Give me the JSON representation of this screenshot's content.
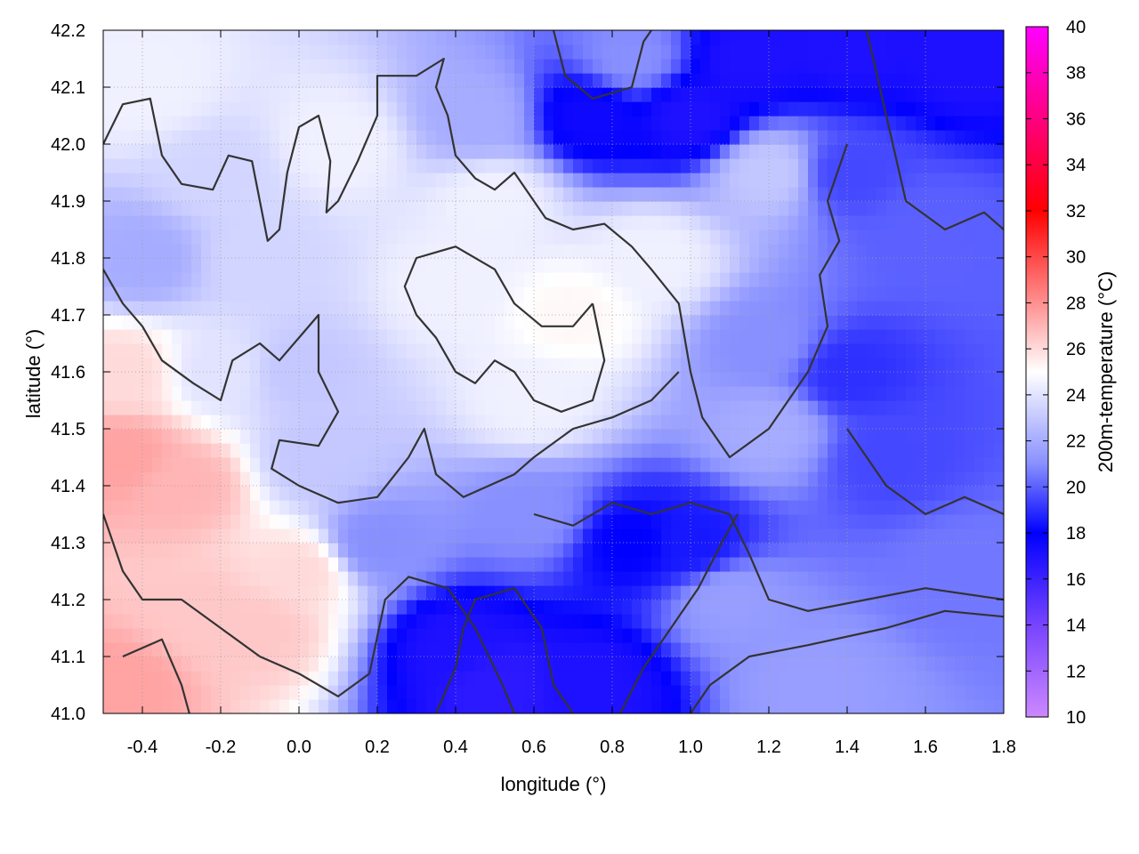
{
  "chart_data": {
    "type": "heatmap",
    "title": "",
    "xlabel": "longitude (°)",
    "ylabel": "latitude (°)",
    "colorbar_label": "200m-temperature (°C)",
    "xlim": [
      -0.5,
      1.8
    ],
    "ylim": [
      41.0,
      42.2
    ],
    "x_ticks": [
      "-0.4",
      "-0.2",
      "0.0",
      "0.2",
      "0.4",
      "0.6",
      "0.8",
      "1.0",
      "1.2",
      "1.4",
      "1.6",
      "1.8"
    ],
    "x_tick_values": [
      -0.4,
      -0.2,
      0.0,
      0.2,
      0.4,
      0.6,
      0.8,
      1.0,
      1.2,
      1.4,
      1.6,
      1.8
    ],
    "y_ticks": [
      "41.0",
      "41.1",
      "41.2",
      "41.3",
      "41.4",
      "41.5",
      "41.6",
      "41.7",
      "41.8",
      "41.9",
      "42.0",
      "42.1",
      "42.2"
    ],
    "y_tick_values": [
      41.0,
      41.1,
      41.2,
      41.3,
      41.4,
      41.5,
      41.6,
      41.7,
      41.8,
      41.9,
      42.0,
      42.1,
      42.2
    ],
    "colorbar_range": [
      10,
      40
    ],
    "colorbar_ticks": [
      "10",
      "12",
      "14",
      "16",
      "18",
      "20",
      "22",
      "24",
      "26",
      "28",
      "30",
      "32",
      "34",
      "36",
      "38",
      "40"
    ],
    "colorbar_tick_values": [
      10,
      12,
      14,
      16,
      18,
      20,
      22,
      24,
      26,
      28,
      30,
      32,
      34,
      36,
      38,
      40
    ],
    "colormap": [
      {
        "value": 10,
        "color": "#cc88ff"
      },
      {
        "value": 14,
        "color": "#7744ff"
      },
      {
        "value": 18,
        "color": "#0000ff"
      },
      {
        "value": 21,
        "color": "#8890ff"
      },
      {
        "value": 25,
        "color": "#ffffff"
      },
      {
        "value": 28,
        "color": "#ff9090"
      },
      {
        "value": 32,
        "color": "#ff0000"
      },
      {
        "value": 40,
        "color": "#ff00ff"
      }
    ],
    "field_points": [
      {
        "x": -0.45,
        "y": 41.05,
        "t": 27.5
      },
      {
        "x": -0.45,
        "y": 41.45,
        "t": 27.5
      },
      {
        "x": -0.3,
        "y": 41.4,
        "t": 27
      },
      {
        "x": -0.25,
        "y": 41.18,
        "t": 26.5
      },
      {
        "x": -0.1,
        "y": 41.15,
        "t": 26.5
      },
      {
        "x": 0.0,
        "y": 41.25,
        "t": 26
      },
      {
        "x": -0.45,
        "y": 41.6,
        "t": 26
      },
      {
        "x": -0.2,
        "y": 41.6,
        "t": 24
      },
      {
        "x": -0.4,
        "y": 41.8,
        "t": 22
      },
      {
        "x": -0.1,
        "y": 41.8,
        "t": 23.5
      },
      {
        "x": 0.0,
        "y": 41.6,
        "t": 23
      },
      {
        "x": 0.05,
        "y": 41.45,
        "t": 23
      },
      {
        "x": -0.4,
        "y": 42.1,
        "t": 24.5
      },
      {
        "x": -0.2,
        "y": 41.95,
        "t": 23.5
      },
      {
        "x": 0.1,
        "y": 42.0,
        "t": 24.5
      },
      {
        "x": 0.5,
        "y": 41.9,
        "t": 24.5
      },
      {
        "x": 0.4,
        "y": 41.75,
        "t": 24.5
      },
      {
        "x": 0.7,
        "y": 41.7,
        "t": 25.2
      },
      {
        "x": 0.6,
        "y": 41.55,
        "t": 24.5
      },
      {
        "x": 0.9,
        "y": 41.8,
        "t": 24.5
      },
      {
        "x": 0.2,
        "y": 41.3,
        "t": 21
      },
      {
        "x": 0.4,
        "y": 41.12,
        "t": 17
      },
      {
        "x": 0.5,
        "y": 41.05,
        "t": 16.5
      },
      {
        "x": 0.75,
        "y": 41.05,
        "t": 17
      },
      {
        "x": 0.6,
        "y": 41.35,
        "t": 21
      },
      {
        "x": 0.85,
        "y": 41.3,
        "t": 18
      },
      {
        "x": 1.0,
        "y": 41.3,
        "t": 18.5
      },
      {
        "x": 1.2,
        "y": 41.5,
        "t": 22
      },
      {
        "x": 1.2,
        "y": 41.65,
        "t": 21
      },
      {
        "x": 1.4,
        "y": 41.6,
        "t": 19
      },
      {
        "x": 1.5,
        "y": 41.45,
        "t": 19.5
      },
      {
        "x": 1.7,
        "y": 41.25,
        "t": 20.5
      },
      {
        "x": 1.6,
        "y": 41.85,
        "t": 20
      },
      {
        "x": 1.4,
        "y": 41.95,
        "t": 19.5
      },
      {
        "x": 1.7,
        "y": 42.15,
        "t": 17
      },
      {
        "x": 1.4,
        "y": 42.17,
        "t": 17
      },
      {
        "x": 1.15,
        "y": 42.15,
        "t": 17
      },
      {
        "x": 1.0,
        "y": 42.05,
        "t": 17
      },
      {
        "x": 0.75,
        "y": 42.05,
        "t": 17.5
      },
      {
        "x": 0.85,
        "y": 42.15,
        "t": 21
      },
      {
        "x": 0.45,
        "y": 42.05,
        "t": 22
      },
      {
        "x": 1.2,
        "y": 41.95,
        "t": 23
      },
      {
        "x": 1.1,
        "y": 41.2,
        "t": 21.5
      },
      {
        "x": 1.3,
        "y": 41.05,
        "t": 21.5
      }
    ],
    "contours": [
      [
        [
          -0.5,
          42.0
        ],
        [
          -0.45,
          42.07
        ],
        [
          -0.38,
          42.08
        ],
        [
          -0.35,
          41.98
        ],
        [
          -0.3,
          41.93
        ],
        [
          -0.22,
          41.92
        ],
        [
          -0.18,
          41.98
        ],
        [
          -0.12,
          41.97
        ],
        [
          -0.1,
          41.9
        ],
        [
          -0.08,
          41.83
        ],
        [
          -0.05,
          41.85
        ],
        [
          -0.03,
          41.95
        ],
        [
          0.0,
          42.03
        ],
        [
          0.05,
          42.05
        ],
        [
          0.08,
          41.97
        ],
        [
          0.07,
          41.88
        ],
        [
          0.1,
          41.9
        ],
        [
          0.15,
          41.97
        ],
        [
          0.2,
          42.05
        ],
        [
          0.2,
          42.12
        ],
        [
          0.3,
          42.12
        ],
        [
          0.37,
          42.15
        ],
        [
          0.35,
          42.1
        ],
        [
          0.38,
          42.05
        ],
        [
          0.4,
          41.98
        ],
        [
          0.45,
          41.94
        ],
        [
          0.5,
          41.92
        ],
        [
          0.55,
          41.95
        ],
        [
          0.6,
          41.9
        ],
        [
          0.63,
          41.87
        ],
        [
          0.7,
          41.85
        ],
        [
          0.78,
          41.86
        ],
        [
          0.85,
          41.82
        ],
        [
          0.9,
          41.78
        ],
        [
          0.97,
          41.72
        ],
        [
          1.0,
          41.6
        ],
        [
          1.03,
          41.52
        ],
        [
          1.1,
          41.45
        ],
        [
          1.2,
          41.5
        ],
        [
          1.25,
          41.55
        ],
        [
          1.3,
          41.6
        ],
        [
          1.35,
          41.68
        ],
        [
          1.33,
          41.77
        ],
        [
          1.38,
          41.83
        ],
        [
          1.35,
          41.9
        ],
        [
          1.4,
          42.0
        ]
      ],
      [
        [
          -0.5,
          41.78
        ],
        [
          -0.45,
          41.72
        ],
        [
          -0.4,
          41.68
        ],
        [
          -0.35,
          41.62
        ],
        [
          -0.27,
          41.58
        ],
        [
          -0.2,
          41.55
        ],
        [
          -0.17,
          41.62
        ],
        [
          -0.1,
          41.65
        ],
        [
          -0.05,
          41.62
        ],
        [
          0.0,
          41.66
        ],
        [
          0.05,
          41.7
        ],
        [
          0.05,
          41.6
        ],
        [
          0.1,
          41.53
        ],
        [
          0.05,
          41.47
        ],
        [
          -0.05,
          41.48
        ],
        [
          -0.07,
          41.43
        ],
        [
          0.0,
          41.4
        ],
        [
          0.1,
          41.37
        ],
        [
          0.2,
          41.38
        ],
        [
          0.28,
          41.45
        ],
        [
          0.32,
          41.5
        ],
        [
          0.35,
          41.42
        ],
        [
          0.42,
          41.38
        ],
        [
          0.55,
          41.42
        ],
        [
          0.6,
          41.45
        ],
        [
          0.7,
          41.5
        ],
        [
          0.8,
          41.52
        ],
        [
          0.9,
          41.55
        ],
        [
          0.97,
          41.6
        ]
      ],
      [
        [
          -0.5,
          41.35
        ],
        [
          -0.45,
          41.25
        ],
        [
          -0.4,
          41.2
        ],
        [
          -0.3,
          41.2
        ],
        [
          -0.2,
          41.15
        ],
        [
          -0.1,
          41.1
        ],
        [
          0.0,
          41.07
        ],
        [
          0.1,
          41.03
        ],
        [
          0.18,
          41.07
        ],
        [
          0.22,
          41.2
        ],
        [
          0.28,
          41.24
        ],
        [
          0.38,
          41.22
        ],
        [
          0.45,
          41.15
        ],
        [
          0.52,
          41.05
        ],
        [
          0.55,
          41.0
        ]
      ],
      [
        [
          -0.45,
          41.1
        ],
        [
          -0.35,
          41.13
        ],
        [
          -0.3,
          41.05
        ],
        [
          -0.28,
          41.0
        ]
      ],
      [
        [
          0.35,
          41.0
        ],
        [
          0.4,
          41.08
        ],
        [
          0.42,
          41.15
        ],
        [
          0.45,
          41.2
        ],
        [
          0.55,
          41.22
        ],
        [
          0.62,
          41.15
        ],
        [
          0.65,
          41.05
        ],
        [
          0.7,
          41.0
        ]
      ],
      [
        [
          0.6,
          41.35
        ],
        [
          0.7,
          41.33
        ],
        [
          0.8,
          41.37
        ],
        [
          0.9,
          41.35
        ],
        [
          1.0,
          41.37
        ],
        [
          1.1,
          41.35
        ],
        [
          1.15,
          41.28
        ],
        [
          1.2,
          41.2
        ],
        [
          1.3,
          41.18
        ],
        [
          1.45,
          41.2
        ],
        [
          1.6,
          41.22
        ],
        [
          1.8,
          41.2
        ]
      ],
      [
        [
          0.82,
          41.0
        ],
        [
          0.88,
          41.08
        ],
        [
          0.95,
          41.15
        ],
        [
          1.02,
          41.22
        ],
        [
          1.08,
          41.3
        ],
        [
          1.12,
          41.35
        ]
      ],
      [
        [
          1.0,
          41.0
        ],
        [
          1.05,
          41.05
        ],
        [
          1.15,
          41.1
        ],
        [
          1.3,
          41.12
        ],
        [
          1.5,
          41.15
        ],
        [
          1.65,
          41.18
        ],
        [
          1.8,
          41.17
        ]
      ],
      [
        [
          0.75,
          41.72
        ],
        [
          0.78,
          41.62
        ],
        [
          0.75,
          41.55
        ],
        [
          0.67,
          41.53
        ],
        [
          0.6,
          41.55
        ],
        [
          0.55,
          41.6
        ],
        [
          0.5,
          41.62
        ],
        [
          0.45,
          41.58
        ],
        [
          0.4,
          41.6
        ],
        [
          0.35,
          41.66
        ],
        [
          0.3,
          41.7
        ],
        [
          0.27,
          41.75
        ],
        [
          0.3,
          41.8
        ],
        [
          0.4,
          41.82
        ],
        [
          0.5,
          41.78
        ],
        [
          0.55,
          41.72
        ],
        [
          0.62,
          41.68
        ],
        [
          0.7,
          41.68
        ],
        [
          0.75,
          41.72
        ]
      ],
      [
        [
          1.45,
          42.2
        ],
        [
          1.5,
          42.05
        ],
        [
          1.55,
          41.9
        ],
        [
          1.65,
          41.85
        ],
        [
          1.75,
          41.88
        ],
        [
          1.8,
          41.85
        ]
      ],
      [
        [
          1.4,
          41.5
        ],
        [
          1.5,
          41.4
        ],
        [
          1.6,
          41.35
        ],
        [
          1.7,
          41.38
        ],
        [
          1.8,
          41.35
        ]
      ],
      [
        [
          0.65,
          42.2
        ],
        [
          0.68,
          42.12
        ],
        [
          0.75,
          42.08
        ],
        [
          0.85,
          42.1
        ],
        [
          0.88,
          42.18
        ],
        [
          0.9,
          42.2
        ]
      ]
    ]
  }
}
